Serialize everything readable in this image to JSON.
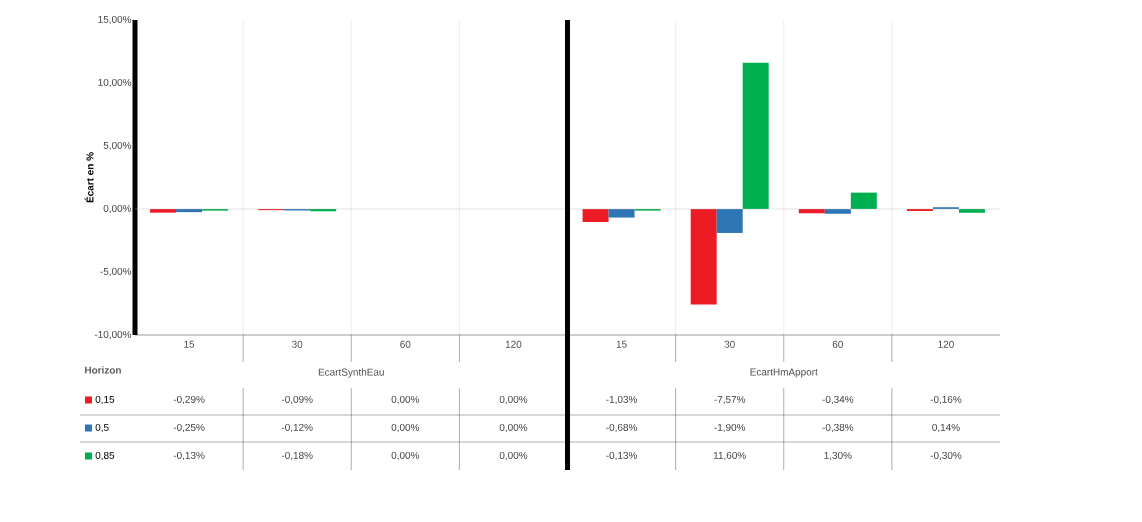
{
  "chart_data": {
    "type": "bar",
    "ylabel": "Écart en %",
    "xlabel": "Horizon",
    "categories": [
      "15",
      "30",
      "60",
      "120",
      "15",
      "30",
      "60",
      "120"
    ],
    "annotations": [
      "EcartSynthEau",
      "EcartHmApport"
    ],
    "series": [
      {
        "name": "0,15",
        "color": "#ed1c24",
        "values": [
          -0.29,
          -0.09,
          0.0,
          0.0,
          -1.03,
          -7.57,
          -0.34,
          -0.16
        ],
        "value_labels": [
          "-0,29%",
          "-0,09%",
          "0,00%",
          "0,00%",
          "-1,03%",
          "-7,57%",
          "-0,34%",
          "-0,16%"
        ]
      },
      {
        "name": "0,5",
        "color": "#2e75b6",
        "values": [
          -0.25,
          -0.12,
          0.0,
          0.0,
          -0.68,
          -1.9,
          -0.38,
          0.14
        ],
        "value_labels": [
          "-0,25%",
          "-0,12%",
          "0,00%",
          "0,00%",
          "-0,68%",
          "-1,90%",
          "-0,38%",
          "0,14%"
        ]
      },
      {
        "name": "0,85",
        "color": "#00b050",
        "values": [
          -0.13,
          -0.18,
          0.0,
          0.0,
          -0.13,
          11.6,
          1.3,
          -0.3
        ],
        "value_labels": [
          "-0,13%",
          "-0,18%",
          "0,00%",
          "0,00%",
          "-0,13%",
          "11,60%",
          "1,30%",
          "-0,30%"
        ]
      }
    ],
    "ylim": [
      -10,
      15
    ],
    "yticks": [
      {
        "value": -10,
        "label": "-10,00%"
      },
      {
        "value": -5,
        "label": "-5,00%"
      },
      {
        "value": 0,
        "label": "0,00%"
      },
      {
        "value": 5,
        "label": "5,00%"
      },
      {
        "value": 10,
        "label": "10,00%"
      },
      {
        "value": 15,
        "label": "15,00%"
      }
    ],
    "grid": "x",
    "legend": "bottom"
  }
}
